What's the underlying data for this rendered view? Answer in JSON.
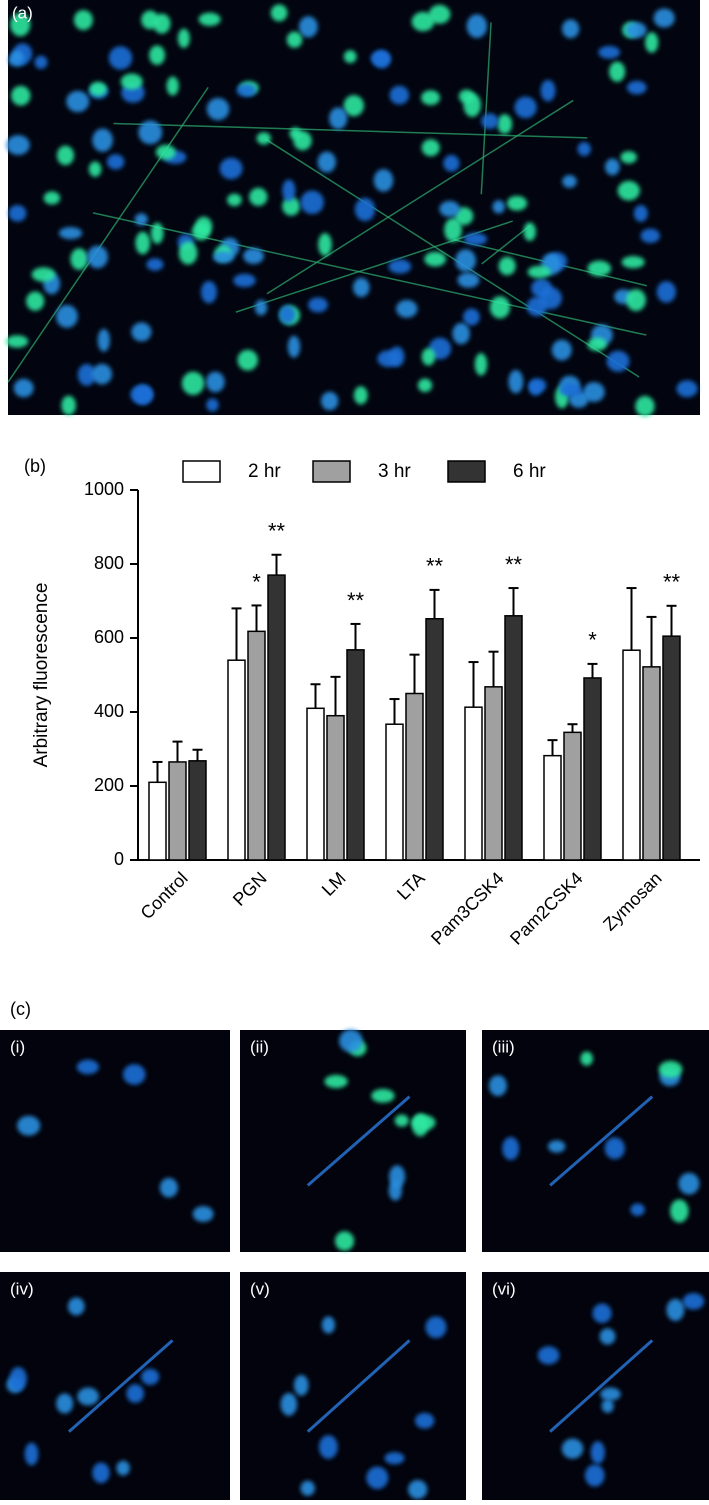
{
  "panels": {
    "a": "(a)",
    "c": "(c)",
    "c_images": [
      "(i)",
      "(ii)",
      "(iii)",
      "(iv)",
      "(v)",
      "(vi)"
    ]
  },
  "chart_data": {
    "type": "bar",
    "panel_label": "(b)",
    "y_label": "Arbitrary fluorescence",
    "categories": [
      "Control",
      "PGN",
      "LM",
      "LTA",
      "Pam3CSK4",
      "Pam2CSK4",
      "Zymosan"
    ],
    "series": [
      {
        "name": "2 hr",
        "color": "#ffffff",
        "values": [
          210,
          540,
          410,
          367,
          413,
          282,
          567
        ],
        "errors": [
          55,
          140,
          65,
          68,
          122,
          42,
          168
        ]
      },
      {
        "name": "3 hr",
        "color": "#a0a0a0",
        "values": [
          265,
          618,
          390,
          450,
          468,
          345,
          522
        ],
        "errors": [
          55,
          70,
          105,
          105,
          95,
          22,
          135
        ],
        "significance": [
          null,
          "*",
          null,
          null,
          null,
          null,
          null
        ]
      },
      {
        "name": "6 hr",
        "color": "#333333",
        "values": [
          268,
          770,
          568,
          652,
          660,
          492,
          605
        ],
        "errors": [
          30,
          55,
          70,
          78,
          75,
          38,
          82
        ],
        "significance": [
          null,
          "**",
          "**",
          "**",
          "**",
          "*",
          "**"
        ]
      }
    ],
    "ylim": [
      0,
      1000
    ],
    "yticks": [
      0,
      200,
      400,
      600,
      800,
      1000
    ]
  }
}
